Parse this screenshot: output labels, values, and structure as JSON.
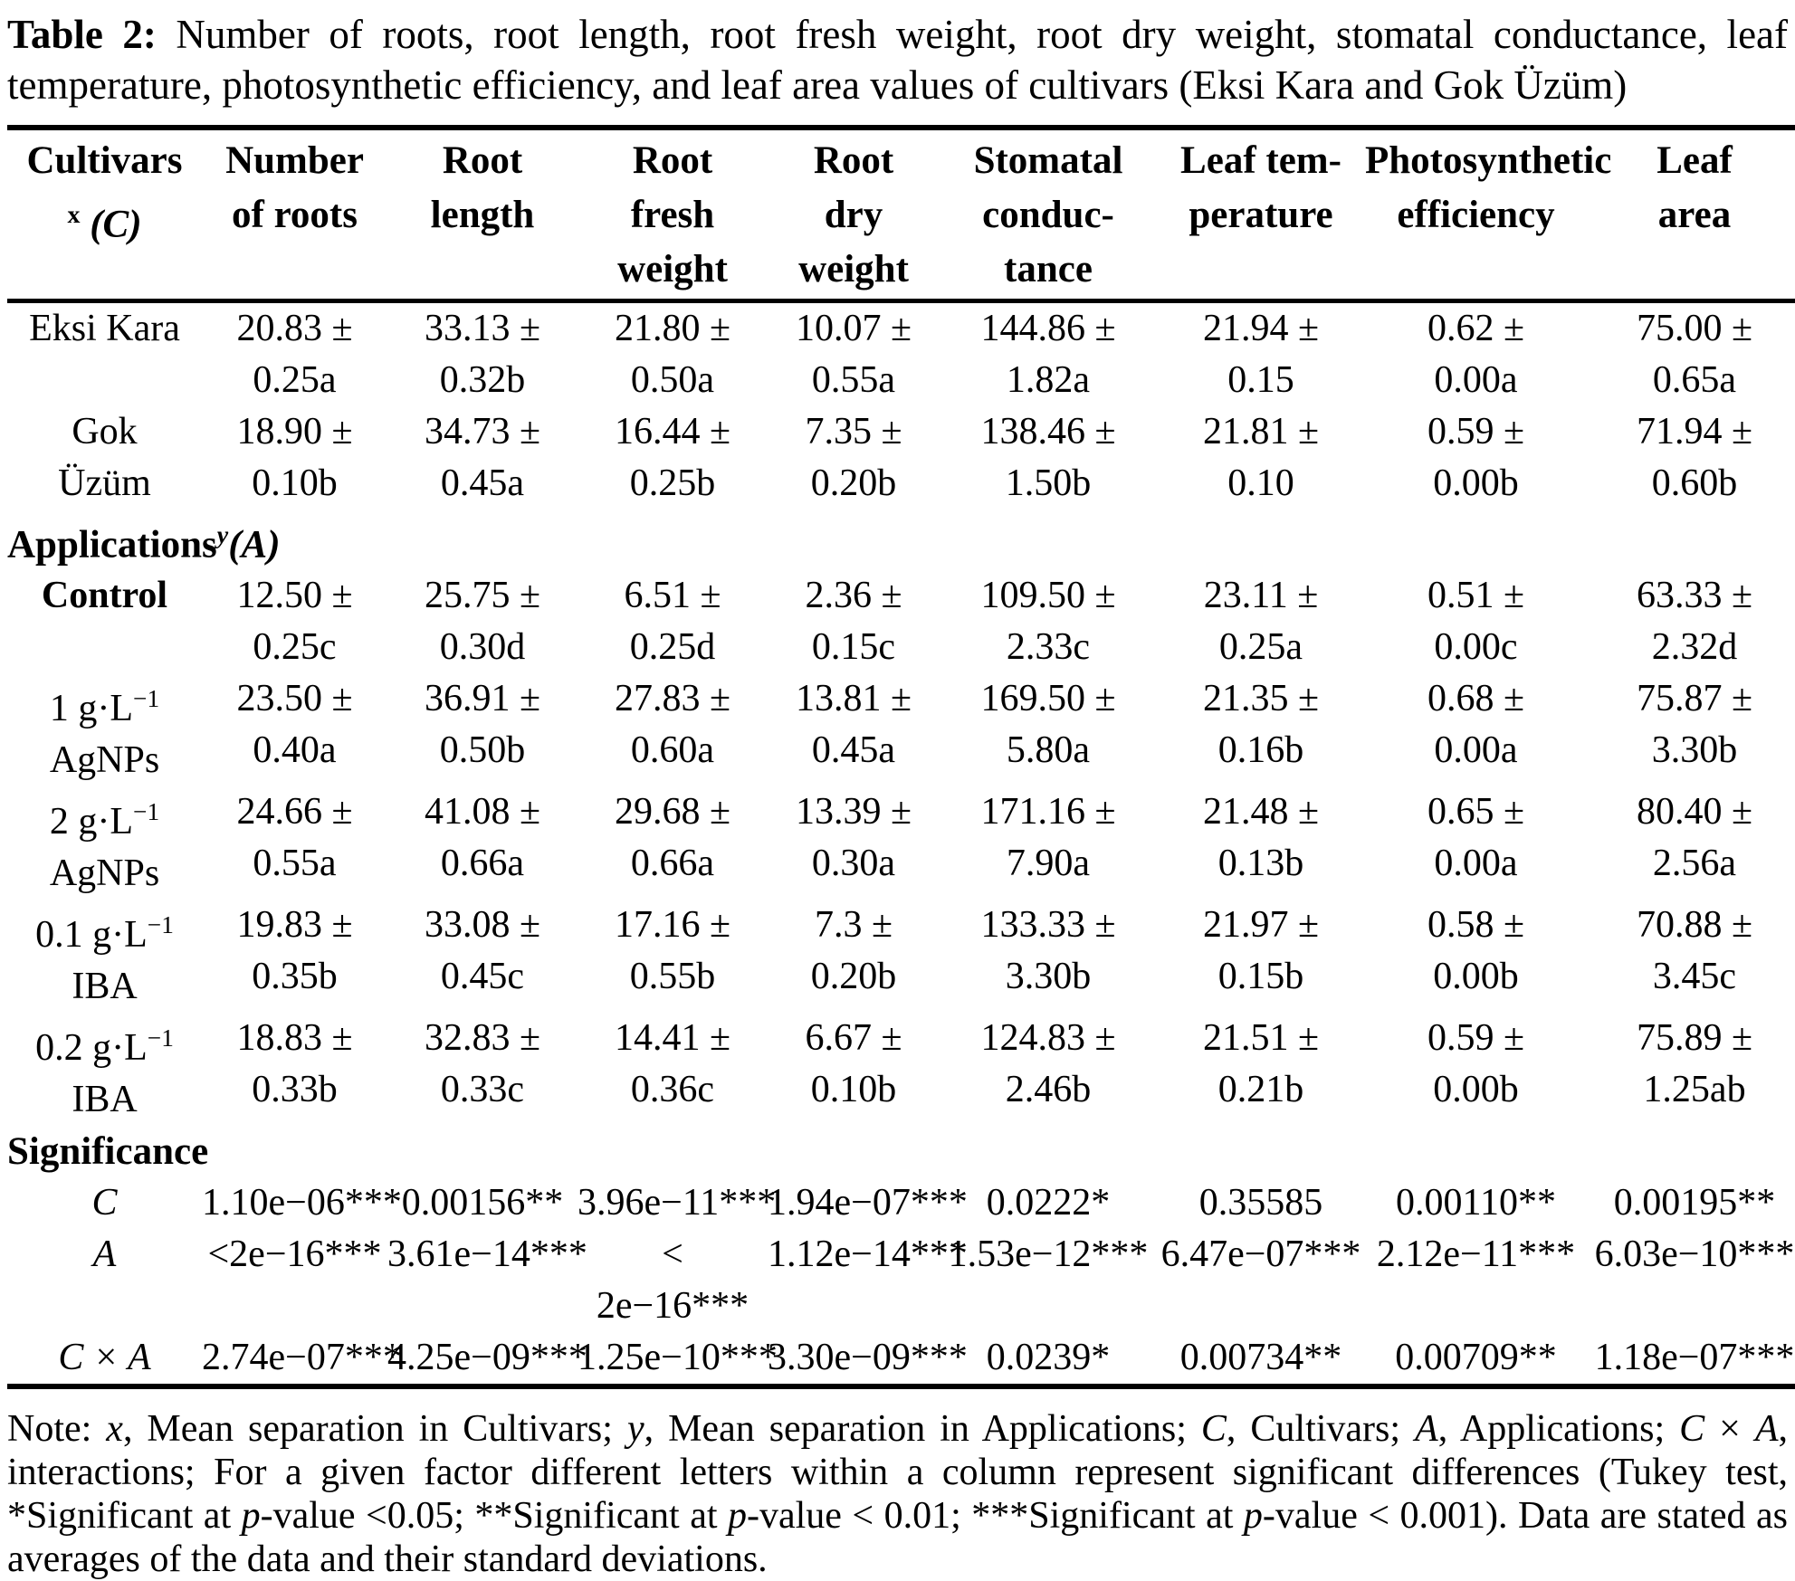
{
  "title": {
    "segments": [
      {
        "b": "Table 2:"
      },
      {
        "t": " Number of roots, root length, root fresh weight, root dry weight, stomatal conductance, leaf temperature, photosynthetic efficiency, and leaf area values of cultivars (Eksi Kara and Gok Üzüm)"
      }
    ]
  },
  "headers": [
    {
      "l1": "Cultivars",
      "sup": "x",
      "rest": "(C)"
    },
    {
      "l1": "Number",
      "l2": "of roots"
    },
    {
      "l1": "Root",
      "l2": "length"
    },
    {
      "l1": "Root",
      "l2": "fresh",
      "l3": "weight"
    },
    {
      "l1": "Root",
      "l2": "dry",
      "l3": "weight"
    },
    {
      "l1": "Stomatal",
      "l2": "conduc-",
      "l3": "tance"
    },
    {
      "l1": "Leaf tem-",
      "l2": "perature"
    },
    {
      "l1": "Photosynthetic",
      "l2": "efficiency"
    },
    {
      "l1": "Leaf",
      "l2": "area"
    }
  ],
  "sections": {
    "applications": {
      "text": "Applications",
      "sup": "y",
      "rest": "(A)"
    },
    "significance": "Significance"
  },
  "rows": {
    "eksi": {
      "label1": "Eksi Kara",
      "label2": "",
      "c": [
        [
          "20.83 ±",
          "0.25a"
        ],
        [
          "33.13 ±",
          "0.32b"
        ],
        [
          "21.80 ±",
          "0.50a"
        ],
        [
          "10.07 ±",
          "0.55a"
        ],
        [
          "144.86 ±",
          "1.82a"
        ],
        [
          "21.94 ±",
          "0.15"
        ],
        [
          "0.62 ±",
          "0.00a"
        ],
        [
          "75.00 ±",
          "0.65a"
        ]
      ]
    },
    "gok": {
      "label1": "Gok",
      "label2": "Üzüm",
      "c": [
        [
          "18.90 ±",
          "0.10b"
        ],
        [
          "34.73 ±",
          "0.45a"
        ],
        [
          "16.44 ±",
          "0.25b"
        ],
        [
          "7.35 ±",
          "0.20b"
        ],
        [
          "138.46 ±",
          "1.50b"
        ],
        [
          "21.81 ±",
          "0.10"
        ],
        [
          "0.59 ±",
          "0.00b"
        ],
        [
          "71.94 ±",
          "0.60b"
        ]
      ]
    },
    "control": {
      "label1": "Control",
      "label2": "",
      "c": [
        [
          "12.50 ±",
          "0.25c"
        ],
        [
          "25.75 ±",
          "0.30d"
        ],
        [
          "6.51 ±",
          "0.25d"
        ],
        [
          "2.36 ±",
          "0.15c"
        ],
        [
          "109.50 ±",
          "2.33c"
        ],
        [
          "23.11 ±",
          "0.25a"
        ],
        [
          "0.51 ±",
          "0.00c"
        ],
        [
          "63.33 ±",
          "2.32d"
        ]
      ]
    },
    "agnps1": {
      "label1_main": "1 g·L",
      "label1_sup": "−1",
      "label2": "AgNPs",
      "c": [
        [
          "23.50 ±",
          "0.40a"
        ],
        [
          "36.91 ±",
          "0.50b"
        ],
        [
          "27.83 ±",
          "0.60a"
        ],
        [
          "13.81 ±",
          "0.45a"
        ],
        [
          "169.50 ±",
          "5.80a"
        ],
        [
          "21.35 ±",
          "0.16b"
        ],
        [
          "0.68 ±",
          "0.00a"
        ],
        [
          "75.87 ±",
          "3.30b"
        ]
      ]
    },
    "agnps2": {
      "label1_main": "2 g·L",
      "label1_sup": "−1",
      "label2": "AgNPs",
      "c": [
        [
          "24.66 ±",
          "0.55a"
        ],
        [
          "41.08 ±",
          "0.66a"
        ],
        [
          "29.68 ±",
          "0.66a"
        ],
        [
          "13.39 ±",
          "0.30a"
        ],
        [
          "171.16 ±",
          "7.90a"
        ],
        [
          "21.48 ±",
          "0.13b"
        ],
        [
          "0.65 ±",
          "0.00a"
        ],
        [
          "80.40 ±",
          "2.56a"
        ]
      ]
    },
    "iba01": {
      "label1_main": "0.1 g·L",
      "label1_sup": "−1",
      "label2": "IBA",
      "c": [
        [
          "19.83 ±",
          "0.35b"
        ],
        [
          "33.08 ±",
          "0.45c"
        ],
        [
          "17.16 ±",
          "0.55b"
        ],
        [
          "7.3 ±",
          "0.20b"
        ],
        [
          "133.33 ±",
          "3.30b"
        ],
        [
          "21.97 ±",
          "0.15b"
        ],
        [
          "0.58 ±",
          "0.00b"
        ],
        [
          "70.88 ±",
          "3.45c"
        ]
      ]
    },
    "iba02": {
      "label1_main": "0.2 g·L",
      "label1_sup": "−1",
      "label2": "IBA",
      "c": [
        [
          "18.83 ±",
          "0.33b"
        ],
        [
          "32.83 ±",
          "0.33c"
        ],
        [
          "14.41 ±",
          "0.36c"
        ],
        [
          "6.67 ±",
          "0.10b"
        ],
        [
          "124.83 ±",
          "2.46b"
        ],
        [
          "21.51 ±",
          "0.21b"
        ],
        [
          "0.59 ±",
          "0.00b"
        ],
        [
          "75.89 ±",
          "1.25ab"
        ]
      ]
    },
    "sigc": {
      "label": "C",
      "v": [
        "1.10e−06***",
        "0.00156**",
        "3.96e−11***",
        "1.94e−07***",
        "0.0222*",
        "0.35585",
        "0.00110**",
        "0.00195**"
      ]
    },
    "siga": {
      "label": "A",
      "c": [
        [
          "<2e−16***",
          ""
        ],
        [
          "3.61e−14***",
          ""
        ],
        [
          "<",
          "2e−16***"
        ],
        [
          "1.12e−14***",
          ""
        ],
        [
          "1.53e−12***",
          ""
        ],
        [
          "6.47e−07***",
          ""
        ],
        [
          "2.12e−11***",
          ""
        ],
        [
          "6.03e−10***",
          ""
        ]
      ]
    },
    "sigcxa": {
      "label": "C × A",
      "v": [
        "2.74e−07***",
        "4.25e−09***",
        "1.25e−10***",
        "3.30e−09***",
        "0.0239*",
        "0.00734**",
        "0.00709**",
        "1.18e−07***"
      ]
    }
  },
  "note": {
    "segments": [
      {
        "t": "Note: "
      },
      {
        "i": "x"
      },
      {
        "t": ", Mean separation in Cultivars; "
      },
      {
        "i": "y"
      },
      {
        "t": ", Mean separation in Applications; "
      },
      {
        "i": "C"
      },
      {
        "t": ", Cultivars; "
      },
      {
        "i": "A"
      },
      {
        "t": ", Applications; "
      },
      {
        "i": "C"
      },
      {
        "t": " × "
      },
      {
        "i": "A"
      },
      {
        "t": ", interactions; For a given factor different letters within a column represent significant differences (Tukey test, *Significant at "
      },
      {
        "i": "p"
      },
      {
        "t": "-value <0.05; **Significant at "
      },
      {
        "i": "p"
      },
      {
        "t": "-value < 0.01; ***Significant at "
      },
      {
        "i": "p"
      },
      {
        "t": "-value < 0.001). Data are stated as averages of the data and their standard deviations."
      }
    ]
  }
}
